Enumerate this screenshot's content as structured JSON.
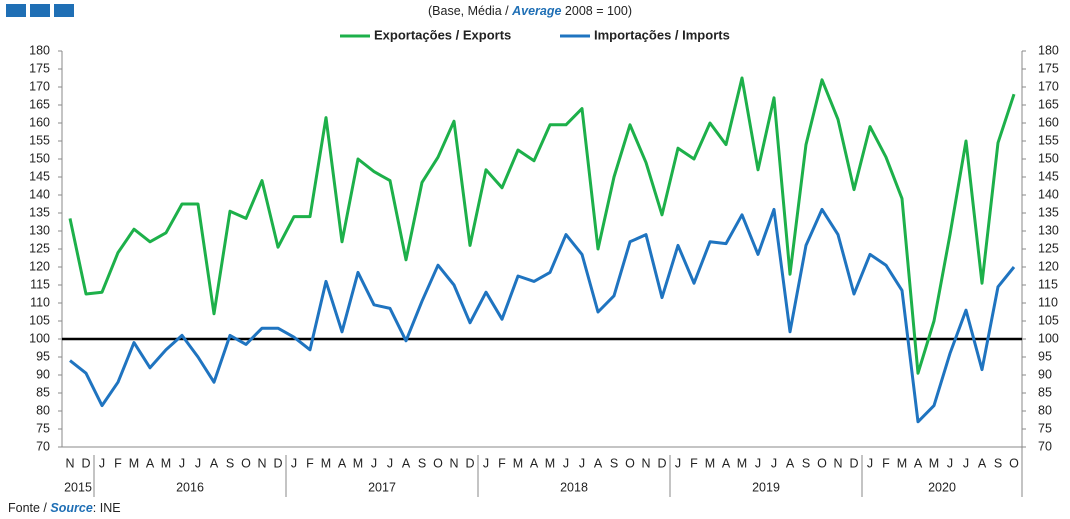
{
  "chart_data": {
    "type": "line",
    "subtitle": [
      "(Base, Média / ",
      "Average",
      " 2008 = 100)"
    ],
    "source": [
      "Fonte / ",
      "Source",
      ": INE"
    ],
    "categories": [
      "N",
      "D",
      "J",
      "F",
      "M",
      "A",
      "M",
      "J",
      "J",
      "A",
      "S",
      "O",
      "N",
      "D",
      "J",
      "F",
      "M",
      "A",
      "M",
      "J",
      "J",
      "A",
      "S",
      "O",
      "N",
      "D",
      "J",
      "F",
      "M",
      "A",
      "M",
      "J",
      "J",
      "A",
      "S",
      "O",
      "N",
      "D",
      "J",
      "F",
      "M",
      "A",
      "M",
      "J",
      "J",
      "A",
      "S",
      "O",
      "N",
      "D",
      "J",
      "F",
      "M",
      "A",
      "M",
      "J",
      "J",
      "A",
      "S",
      "O"
    ],
    "years": [
      "2015",
      "2016",
      "2017",
      "2018",
      "2019",
      "2020"
    ],
    "series": [
      {
        "name": "Exportações / Exports",
        "color": "#1db04a",
        "values": [
          133.5,
          112.5,
          113,
          124,
          130.5,
          127,
          129.5,
          137.5,
          137.5,
          107,
          135.5,
          133.5,
          144,
          125.5,
          134,
          134,
          161.5,
          127,
          150,
          146.5,
          144,
          122,
          143.5,
          150.5,
          160.5,
          126,
          147,
          142,
          152.5,
          149.5,
          159.5,
          159.5,
          164,
          125,
          145,
          159.5,
          149,
          134.5,
          153,
          150,
          160,
          154,
          172.5,
          147,
          167,
          118,
          154,
          172,
          161,
          141.5,
          159,
          150.5,
          139,
          90.5,
          105,
          129,
          155,
          115.5,
          154.5,
          168
        ]
      },
      {
        "name": "Importações / Imports",
        "color": "#1f74c0",
        "values": [
          94,
          90.5,
          81.5,
          88,
          99,
          92,
          97,
          101,
          95,
          88,
          101,
          98.5,
          103,
          103,
          100.5,
          97,
          116,
          102,
          118.5,
          109.5,
          108.5,
          99.5,
          110.5,
          120.5,
          115,
          104.5,
          113,
          105.5,
          117.5,
          116,
          118.5,
          129,
          123.5,
          107.5,
          112,
          127,
          129,
          111.5,
          126,
          115.5,
          127,
          126.5,
          134.5,
          123.5,
          136,
          102,
          126,
          136,
          129,
          112.5,
          123.5,
          120.5,
          113.5,
          77,
          81.5,
          96,
          108,
          91.5,
          114.5,
          120
        ]
      }
    ],
    "reference_line": 100,
    "ylim": [
      70,
      180
    ],
    "yticks": [
      70,
      75,
      80,
      85,
      90,
      95,
      100,
      105,
      110,
      115,
      120,
      125,
      130,
      135,
      140,
      145,
      150,
      155,
      160,
      165,
      170,
      175,
      180
    ]
  }
}
